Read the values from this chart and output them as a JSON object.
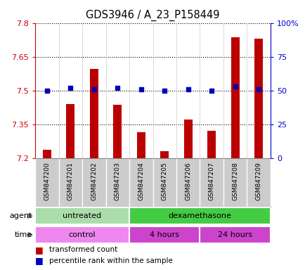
{
  "title": "GDS3946 / A_23_P158449",
  "samples": [
    "GSM847200",
    "GSM847201",
    "GSM847202",
    "GSM847203",
    "GSM847204",
    "GSM847205",
    "GSM847206",
    "GSM847207",
    "GSM847208",
    "GSM847209"
  ],
  "transformed_counts": [
    7.235,
    7.44,
    7.595,
    7.435,
    7.315,
    7.23,
    7.37,
    7.32,
    7.735,
    7.73
  ],
  "percentile_ranks": [
    50,
    52,
    51,
    52,
    51,
    50,
    51,
    50,
    53,
    51
  ],
  "ylim_left": [
    7.2,
    7.8
  ],
  "ylim_right": [
    0,
    100
  ],
  "yticks_left": [
    7.2,
    7.35,
    7.5,
    7.65,
    7.8
  ],
  "ytick_labels_left": [
    "7.2",
    "7.35",
    "7.5",
    "7.65",
    "7.8"
  ],
  "yticks_right": [
    0,
    25,
    50,
    75,
    100
  ],
  "ytick_labels_right": [
    "0",
    "25",
    "50",
    "75",
    "100%"
  ],
  "bar_color": "#bb0000",
  "dot_color": "#0000bb",
  "bar_width": 0.35,
  "agent_groups": [
    {
      "label": "untreated",
      "start": 0,
      "end": 4,
      "color": "#aaddaa"
    },
    {
      "label": "dexamethasone",
      "start": 4,
      "end": 10,
      "color": "#44cc44"
    }
  ],
  "time_groups": [
    {
      "label": "control",
      "start": 0,
      "end": 4,
      "color": "#ee88ee"
    },
    {
      "label": "4 hours",
      "start": 4,
      "end": 7,
      "color": "#cc44cc"
    },
    {
      "label": "24 hours",
      "start": 7,
      "end": 10,
      "color": "#cc44cc"
    }
  ],
  "grid_color": "#000000",
  "plot_bg_color": "#ffffff",
  "label_bg_color": "#cccccc",
  "left_tick_color": "#cc0000",
  "right_tick_color": "#0000cc"
}
